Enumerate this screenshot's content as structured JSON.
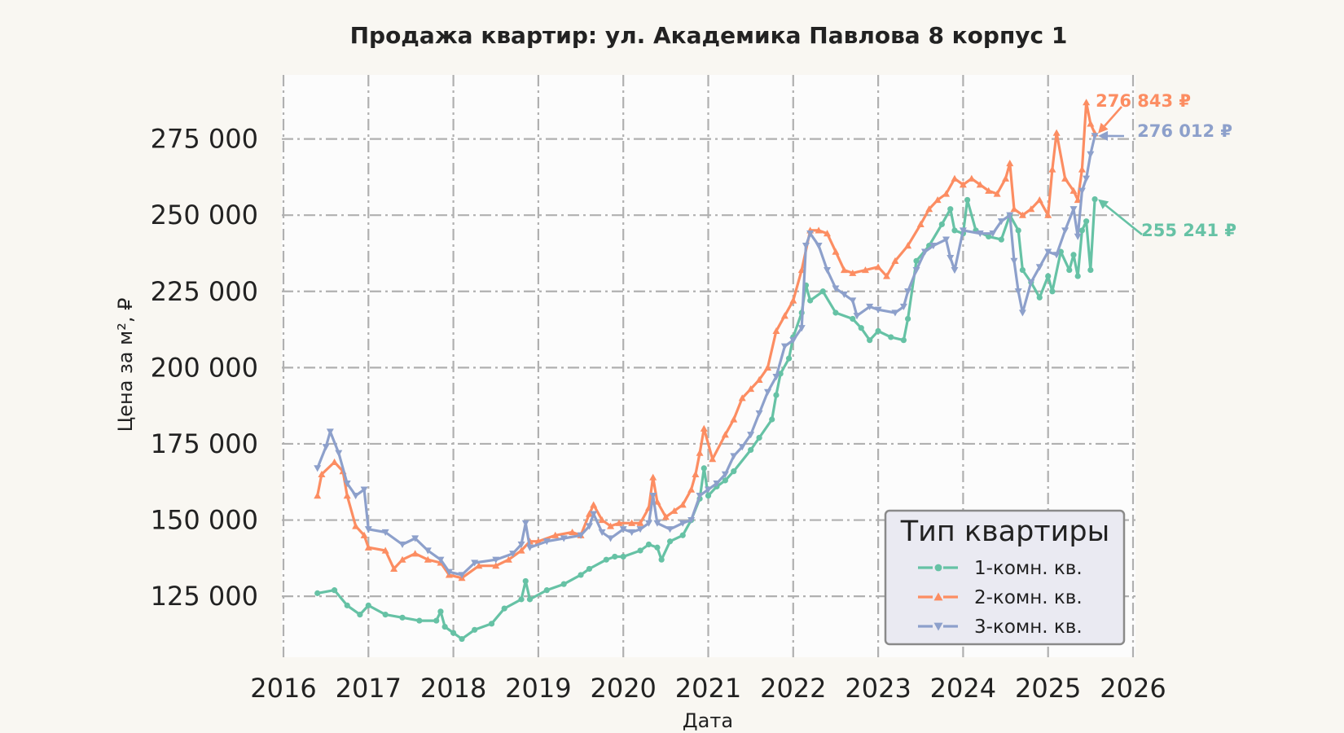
{
  "chart_data": {
    "type": "line",
    "title": "Продажа квартир: ул. Академика Павлова 8 корпус 1",
    "xlabel": "Дата",
    "ylabel": "Цена за м², ₽",
    "xlim": [
      2016,
      2026
    ],
    "ylim": [
      105000,
      296000
    ],
    "x_ticks": [
      "2016",
      "2017",
      "2018",
      "2019",
      "2020",
      "2021",
      "2022",
      "2023",
      "2024",
      "2025",
      "2026"
    ],
    "y_ticks": [
      {
        "value": 125000,
        "label": "125 000"
      },
      {
        "value": 150000,
        "label": "150 000"
      },
      {
        "value": 175000,
        "label": "175 000"
      },
      {
        "value": 200000,
        "label": "200 000"
      },
      {
        "value": 225000,
        "label": "225 000"
      },
      {
        "value": 250000,
        "label": "250 000"
      },
      {
        "value": 275000,
        "label": "275 000"
      }
    ],
    "grid": true,
    "legend": {
      "title": "Тип квартиры",
      "position": "bottom-right"
    },
    "series": [
      {
        "name": "1-комн. кв.",
        "color": "#66c2a5",
        "marker": "circle",
        "end_label": "255 241 ₽",
        "end_value": 255241,
        "points": [
          [
            2016.4,
            126000
          ],
          [
            2016.6,
            127000
          ],
          [
            2016.75,
            122000
          ],
          [
            2016.9,
            119000
          ],
          [
            2017.0,
            122000
          ],
          [
            2017.2,
            119000
          ],
          [
            2017.4,
            118000
          ],
          [
            2017.6,
            117000
          ],
          [
            2017.8,
            117000
          ],
          [
            2017.85,
            120000
          ],
          [
            2017.9,
            115000
          ],
          [
            2018.0,
            113000
          ],
          [
            2018.1,
            111000
          ],
          [
            2018.25,
            114000
          ],
          [
            2018.45,
            116000
          ],
          [
            2018.6,
            121000
          ],
          [
            2018.8,
            124000
          ],
          [
            2018.85,
            130000
          ],
          [
            2018.9,
            124000
          ],
          [
            2019.1,
            127000
          ],
          [
            2019.3,
            129000
          ],
          [
            2019.5,
            132000
          ],
          [
            2019.6,
            134000
          ],
          [
            2019.8,
            137000
          ],
          [
            2019.9,
            138000
          ],
          [
            2020.0,
            138000
          ],
          [
            2020.2,
            140000
          ],
          [
            2020.3,
            142000
          ],
          [
            2020.4,
            141000
          ],
          [
            2020.45,
            137000
          ],
          [
            2020.55,
            143000
          ],
          [
            2020.7,
            145000
          ],
          [
            2020.8,
            150000
          ],
          [
            2020.9,
            157000
          ],
          [
            2020.95,
            167000
          ],
          [
            2021.0,
            158000
          ],
          [
            2021.1,
            161000
          ],
          [
            2021.2,
            163000
          ],
          [
            2021.3,
            166000
          ],
          [
            2021.5,
            173000
          ],
          [
            2021.6,
            177000
          ],
          [
            2021.75,
            183000
          ],
          [
            2021.8,
            191000
          ],
          [
            2021.85,
            198000
          ],
          [
            2021.95,
            203000
          ],
          [
            2022.0,
            210000
          ],
          [
            2022.1,
            218000
          ],
          [
            2022.15,
            227000
          ],
          [
            2022.2,
            222000
          ],
          [
            2022.35,
            225000
          ],
          [
            2022.5,
            218000
          ],
          [
            2022.7,
            216000
          ],
          [
            2022.8,
            213000
          ],
          [
            2022.9,
            209000
          ],
          [
            2023.0,
            212000
          ],
          [
            2023.15,
            210000
          ],
          [
            2023.3,
            209000
          ],
          [
            2023.35,
            216000
          ],
          [
            2023.45,
            235000
          ],
          [
            2023.6,
            240000
          ],
          [
            2023.75,
            247000
          ],
          [
            2023.85,
            252000
          ],
          [
            2023.9,
            245000
          ],
          [
            2024.0,
            244000
          ],
          [
            2024.05,
            255000
          ],
          [
            2024.15,
            245000
          ],
          [
            2024.3,
            243000
          ],
          [
            2024.45,
            242000
          ],
          [
            2024.55,
            250000
          ],
          [
            2024.65,
            245000
          ],
          [
            2024.7,
            232000
          ],
          [
            2024.8,
            228000
          ],
          [
            2024.9,
            223000
          ],
          [
            2025.0,
            230000
          ],
          [
            2025.05,
            225000
          ],
          [
            2025.15,
            238000
          ],
          [
            2025.25,
            232000
          ],
          [
            2025.3,
            237000
          ],
          [
            2025.35,
            230000
          ],
          [
            2025.4,
            245000
          ],
          [
            2025.45,
            248000
          ],
          [
            2025.5,
            232000
          ],
          [
            2025.55,
            255241
          ]
        ]
      },
      {
        "name": "2-комн. кв.",
        "color": "#fc8d62",
        "marker": "triangle-up",
        "end_label": "276 843 ₽",
        "end_value": 276843,
        "points": [
          [
            2016.4,
            158000
          ],
          [
            2016.45,
            165000
          ],
          [
            2016.6,
            169000
          ],
          [
            2016.7,
            166000
          ],
          [
            2016.75,
            158000
          ],
          [
            2016.85,
            148000
          ],
          [
            2016.95,
            145000
          ],
          [
            2017.0,
            141000
          ],
          [
            2017.2,
            140000
          ],
          [
            2017.3,
            134000
          ],
          [
            2017.4,
            137000
          ],
          [
            2017.55,
            139000
          ],
          [
            2017.7,
            137000
          ],
          [
            2017.85,
            136000
          ],
          [
            2017.95,
            132000
          ],
          [
            2018.1,
            131000
          ],
          [
            2018.3,
            135000
          ],
          [
            2018.5,
            135000
          ],
          [
            2018.65,
            137000
          ],
          [
            2018.8,
            140000
          ],
          [
            2018.9,
            143000
          ],
          [
            2019.0,
            143000
          ],
          [
            2019.2,
            145000
          ],
          [
            2019.4,
            146000
          ],
          [
            2019.5,
            145000
          ],
          [
            2019.6,
            152000
          ],
          [
            2019.65,
            155000
          ],
          [
            2019.75,
            150000
          ],
          [
            2019.85,
            148000
          ],
          [
            2019.95,
            149000
          ],
          [
            2020.1,
            149000
          ],
          [
            2020.2,
            149000
          ],
          [
            2020.3,
            154000
          ],
          [
            2020.35,
            164000
          ],
          [
            2020.4,
            156000
          ],
          [
            2020.5,
            151000
          ],
          [
            2020.6,
            153000
          ],
          [
            2020.7,
            155000
          ],
          [
            2020.8,
            160000
          ],
          [
            2020.85,
            165000
          ],
          [
            2020.9,
            172000
          ],
          [
            2020.95,
            180000
          ],
          [
            2021.05,
            170000
          ],
          [
            2021.2,
            178000
          ],
          [
            2021.3,
            183000
          ],
          [
            2021.4,
            190000
          ],
          [
            2021.5,
            193000
          ],
          [
            2021.6,
            196000
          ],
          [
            2021.7,
            200000
          ],
          [
            2021.8,
            212000
          ],
          [
            2021.9,
            217000
          ],
          [
            2022.0,
            222000
          ],
          [
            2022.1,
            232000
          ],
          [
            2022.2,
            245000
          ],
          [
            2022.3,
            245000
          ],
          [
            2022.4,
            244000
          ],
          [
            2022.5,
            238000
          ],
          [
            2022.6,
            232000
          ],
          [
            2022.7,
            231000
          ],
          [
            2022.85,
            232000
          ],
          [
            2023.0,
            233000
          ],
          [
            2023.1,
            230000
          ],
          [
            2023.2,
            235000
          ],
          [
            2023.35,
            240000
          ],
          [
            2023.5,
            247000
          ],
          [
            2023.6,
            252000
          ],
          [
            2023.7,
            255000
          ],
          [
            2023.8,
            257000
          ],
          [
            2023.9,
            262000
          ],
          [
            2024.0,
            260000
          ],
          [
            2024.1,
            262000
          ],
          [
            2024.2,
            260000
          ],
          [
            2024.3,
            258000
          ],
          [
            2024.4,
            257000
          ],
          [
            2024.5,
            262000
          ],
          [
            2024.55,
            267000
          ],
          [
            2024.6,
            252000
          ],
          [
            2024.7,
            250000
          ],
          [
            2024.8,
            252000
          ],
          [
            2024.9,
            255000
          ],
          [
            2025.0,
            250000
          ],
          [
            2025.05,
            265000
          ],
          [
            2025.1,
            277000
          ],
          [
            2025.2,
            262000
          ],
          [
            2025.3,
            258000
          ],
          [
            2025.35,
            255000
          ],
          [
            2025.4,
            265000
          ],
          [
            2025.45,
            287000
          ],
          [
            2025.5,
            280000
          ],
          [
            2025.55,
            276843
          ]
        ]
      },
      {
        "name": "3-комн. кв.",
        "color": "#8da0cb",
        "marker": "triangle-down",
        "end_label": "276 012 ₽",
        "end_value": 276012,
        "points": [
          [
            2016.4,
            167000
          ],
          [
            2016.5,
            174000
          ],
          [
            2016.55,
            179000
          ],
          [
            2016.65,
            172000
          ],
          [
            2016.75,
            162000
          ],
          [
            2016.85,
            158000
          ],
          [
            2016.95,
            160000
          ],
          [
            2017.0,
            147000
          ],
          [
            2017.2,
            146000
          ],
          [
            2017.4,
            142000
          ],
          [
            2017.55,
            144000
          ],
          [
            2017.7,
            140000
          ],
          [
            2017.85,
            137000
          ],
          [
            2017.95,
            133000
          ],
          [
            2018.1,
            132000
          ],
          [
            2018.25,
            136000
          ],
          [
            2018.5,
            137000
          ],
          [
            2018.7,
            139000
          ],
          [
            2018.8,
            142000
          ],
          [
            2018.85,
            149000
          ],
          [
            2018.9,
            141000
          ],
          [
            2019.1,
            143000
          ],
          [
            2019.3,
            144000
          ],
          [
            2019.5,
            145000
          ],
          [
            2019.6,
            148000
          ],
          [
            2019.65,
            152000
          ],
          [
            2019.75,
            146000
          ],
          [
            2019.85,
            144000
          ],
          [
            2020.0,
            147000
          ],
          [
            2020.1,
            146000
          ],
          [
            2020.2,
            147000
          ],
          [
            2020.3,
            149000
          ],
          [
            2020.35,
            158000
          ],
          [
            2020.4,
            149000
          ],
          [
            2020.55,
            147000
          ],
          [
            2020.7,
            149000
          ],
          [
            2020.8,
            150000
          ],
          [
            2020.9,
            158000
          ],
          [
            2021.0,
            160000
          ],
          [
            2021.1,
            162000
          ],
          [
            2021.2,
            165000
          ],
          [
            2021.3,
            171000
          ],
          [
            2021.4,
            174000
          ],
          [
            2021.5,
            178000
          ],
          [
            2021.6,
            185000
          ],
          [
            2021.7,
            192000
          ],
          [
            2021.8,
            197000
          ],
          [
            2021.9,
            207000
          ],
          [
            2022.0,
            209000
          ],
          [
            2022.1,
            213000
          ],
          [
            2022.15,
            240000
          ],
          [
            2022.2,
            244000
          ],
          [
            2022.3,
            240000
          ],
          [
            2022.4,
            232000
          ],
          [
            2022.5,
            226000
          ],
          [
            2022.6,
            224000
          ],
          [
            2022.7,
            222000
          ],
          [
            2022.75,
            217000
          ],
          [
            2022.9,
            220000
          ],
          [
            2023.0,
            219000
          ],
          [
            2023.2,
            218000
          ],
          [
            2023.3,
            220000
          ],
          [
            2023.35,
            225000
          ],
          [
            2023.45,
            232000
          ],
          [
            2023.55,
            238000
          ],
          [
            2023.65,
            240000
          ],
          [
            2023.8,
            242000
          ],
          [
            2023.85,
            236000
          ],
          [
            2023.9,
            232000
          ],
          [
            2024.0,
            245000
          ],
          [
            2024.2,
            244000
          ],
          [
            2024.35,
            244000
          ],
          [
            2024.45,
            248000
          ],
          [
            2024.55,
            250000
          ],
          [
            2024.6,
            235000
          ],
          [
            2024.65,
            225000
          ],
          [
            2024.7,
            218000
          ],
          [
            2024.8,
            228000
          ],
          [
            2024.9,
            233000
          ],
          [
            2025.0,
            238000
          ],
          [
            2025.1,
            237000
          ],
          [
            2025.2,
            245000
          ],
          [
            2025.3,
            252000
          ],
          [
            2025.35,
            243000
          ],
          [
            2025.4,
            258000
          ],
          [
            2025.45,
            262000
          ],
          [
            2025.5,
            270000
          ],
          [
            2025.55,
            276012
          ]
        ]
      }
    ]
  }
}
